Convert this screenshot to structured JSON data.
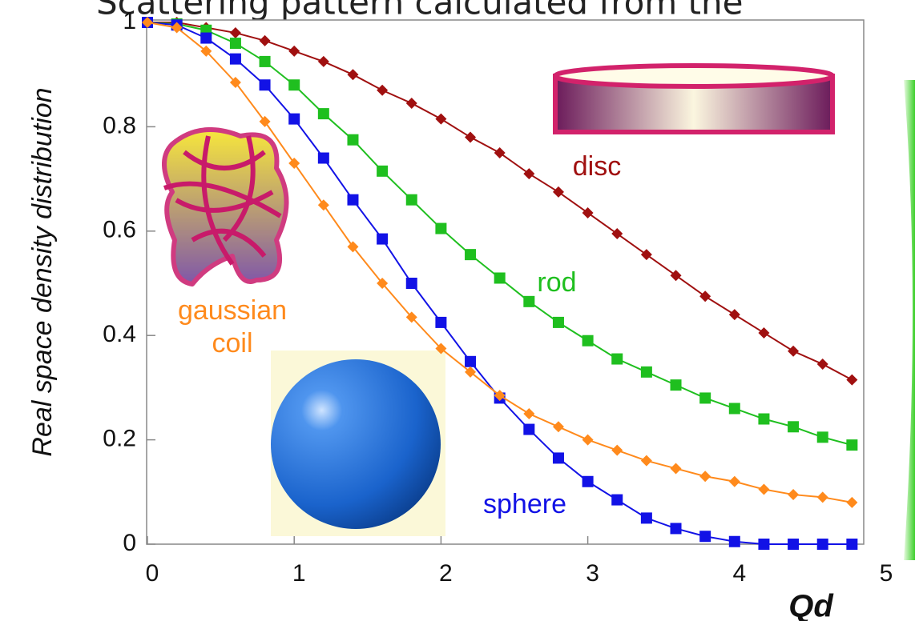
{
  "chart_data": {
    "type": "line",
    "title": "Scattering pattern calculated from the",
    "x_label": "Qd",
    "y_label": "Real space density distribution",
    "x": [
      0,
      0.2,
      0.4,
      0.6,
      0.8,
      1.0,
      1.2,
      1.4,
      1.6,
      1.8,
      2.0,
      2.2,
      2.4,
      2.6,
      2.8,
      3.0,
      3.2,
      3.4,
      3.6,
      3.8,
      4.0,
      4.2,
      4.4,
      4.6,
      4.8
    ],
    "series": [
      {
        "name": "disc",
        "color": "#a01010",
        "marker": "diamond",
        "values": [
          1,
          1,
          0.99,
          0.98,
          0.965,
          0.945,
          0.925,
          0.9,
          0.87,
          0.845,
          0.815,
          0.78,
          0.75,
          0.71,
          0.675,
          0.635,
          0.595,
          0.555,
          0.515,
          0.475,
          0.44,
          0.405,
          0.37,
          0.345,
          0.315
        ]
      },
      {
        "name": "rod",
        "color": "#1fbf1f",
        "marker": "square",
        "values": [
          1,
          0.997,
          0.985,
          0.96,
          0.925,
          0.88,
          0.825,
          0.775,
          0.715,
          0.66,
          0.605,
          0.555,
          0.51,
          0.465,
          0.425,
          0.39,
          0.355,
          0.33,
          0.305,
          0.28,
          0.26,
          0.24,
          0.225,
          0.205,
          0.19
        ]
      },
      {
        "name": "sphere",
        "color": "#1212e6",
        "marker": "square",
        "values": [
          1,
          0.995,
          0.97,
          0.93,
          0.88,
          0.815,
          0.74,
          0.66,
          0.585,
          0.5,
          0.425,
          0.35,
          0.28,
          0.22,
          0.165,
          0.12,
          0.085,
          0.05,
          0.03,
          0.015,
          0.005,
          0,
          0,
          0,
          0
        ]
      },
      {
        "name": "gaussian coil",
        "color": "#ff8a1c",
        "marker": "diamond",
        "values": [
          1,
          0.99,
          0.945,
          0.885,
          0.81,
          0.73,
          0.65,
          0.57,
          0.5,
          0.435,
          0.375,
          0.33,
          0.285,
          0.25,
          0.225,
          0.2,
          0.18,
          0.16,
          0.145,
          0.13,
          0.12,
          0.105,
          0.095,
          0.09,
          0.08
        ]
      }
    ],
    "xlim": [
      0,
      5
    ],
    "ylim": [
      0,
      1
    ],
    "xticks": [
      0,
      1,
      2,
      3,
      4,
      5
    ],
    "yticks": [
      0,
      0.2,
      0.4,
      0.6,
      0.8,
      1
    ]
  }
}
